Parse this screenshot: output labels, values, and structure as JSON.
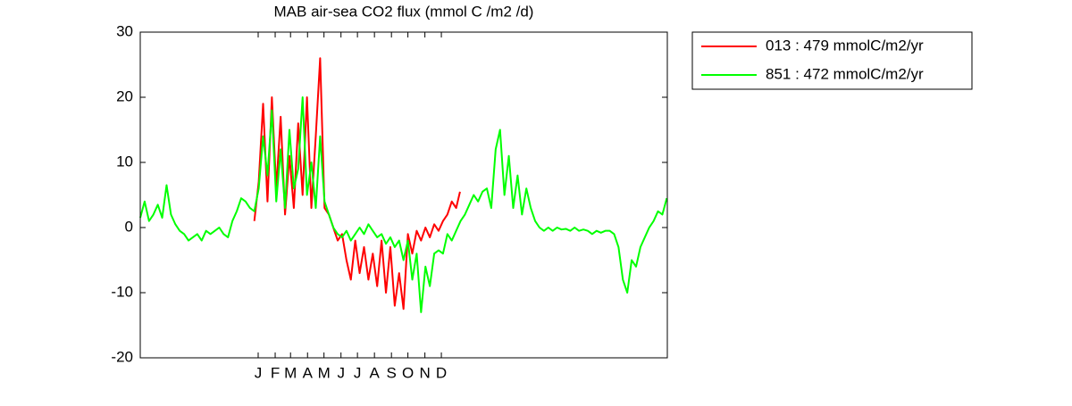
{
  "chart_data": {
    "type": "line",
    "title": "MAB  air-sea CO2 flux (mmol C /m2 /d)",
    "xlim": [
      -215,
      746
    ],
    "xticks": [
      {
        "value": 0,
        "label": "J"
      },
      {
        "value": 31,
        "label": "F"
      },
      {
        "value": 59,
        "label": "M"
      },
      {
        "value": 90,
        "label": "A"
      },
      {
        "value": 120,
        "label": "M"
      },
      {
        "value": 151,
        "label": "J"
      },
      {
        "value": 181,
        "label": "J"
      },
      {
        "value": 212,
        "label": "A"
      },
      {
        "value": 243,
        "label": "S"
      },
      {
        "value": 273,
        "label": "O"
      },
      {
        "value": 304,
        "label": "N"
      },
      {
        "value": 334,
        "label": "D"
      }
    ],
    "ylim": [
      -20,
      30
    ],
    "yticks": [
      -20,
      -10,
      0,
      10,
      20,
      30
    ],
    "grid": false,
    "legend": "outside-top-right",
    "series": [
      {
        "name": "013 : 479 mmolC/m2/yr",
        "color": "#ff0000",
        "x": [
          -7,
          1,
          9,
          17,
          25,
          33,
          41,
          49,
          57,
          65,
          73,
          81,
          89,
          97,
          105,
          113,
          121,
          129,
          137,
          145,
          153,
          161,
          169,
          177,
          185,
          193,
          201,
          209,
          217,
          225,
          233,
          241,
          249,
          257,
          265,
          273,
          281,
          289,
          297,
          305,
          313,
          321,
          329,
          337,
          345,
          353,
          361,
          368
        ],
        "values": [
          1,
          7,
          19,
          4,
          20,
          6,
          17,
          2,
          11,
          3,
          16,
          5,
          20,
          3,
          14,
          26,
          3,
          2,
          0,
          -2,
          -1,
          -5,
          -8,
          -2,
          -7,
          -3,
          -8,
          -4,
          -9,
          -2,
          -10,
          -3,
          -12,
          -7,
          -12.5,
          -1,
          -4,
          -0.5,
          -2,
          0,
          -1.5,
          0.5,
          -0.5,
          1,
          2,
          4,
          3,
          5.5
        ]
      },
      {
        "name": "851 : 472 mmolC/m2/yr",
        "color": "#00ff00",
        "x": [
          -215,
          -207,
          -199,
          -191,
          -183,
          -175,
          -167,
          -159,
          -151,
          -143,
          -135,
          -127,
          -119,
          -111,
          -103,
          -95,
          -87,
          -79,
          -71,
          -63,
          -55,
          -47,
          -39,
          -31,
          -23,
          -15,
          -7,
          1,
          9,
          17,
          25,
          33,
          41,
          49,
          57,
          65,
          73,
          81,
          89,
          97,
          105,
          113,
          121,
          129,
          137,
          145,
          153,
          161,
          169,
          177,
          185,
          193,
          201,
          209,
          217,
          225,
          233,
          241,
          249,
          257,
          265,
          273,
          281,
          289,
          297,
          305,
          313,
          321,
          329,
          337,
          345,
          353,
          361,
          369,
          377,
          385,
          393,
          401,
          409,
          417,
          425,
          433,
          441,
          449,
          457,
          465,
          473,
          481,
          489,
          497,
          505,
          513,
          521,
          529,
          537,
          545,
          553,
          561,
          569,
          577,
          585,
          593,
          601,
          609,
          617,
          625,
          633,
          641,
          649,
          657,
          665,
          673,
          681,
          689,
          697,
          705,
          713,
          721,
          729,
          737,
          745
        ],
        "values": [
          1.5,
          4,
          1,
          2,
          3.5,
          1.5,
          6.5,
          2,
          0.5,
          -0.5,
          -1,
          -2,
          -1.5,
          -1,
          -2,
          -0.5,
          -1,
          -0.5,
          0,
          -1,
          -1.5,
          1,
          2.5,
          4.5,
          4,
          3,
          2.5,
          6,
          14,
          8,
          18,
          4,
          12,
          3,
          15,
          6,
          9,
          20,
          5,
          10,
          3,
          14,
          4,
          2,
          0,
          -1,
          -1.5,
          -0.5,
          -2,
          -1,
          0,
          -1,
          0.5,
          -0.5,
          -1.5,
          -1,
          -2.5,
          -1.5,
          -3,
          -2,
          -5,
          -2,
          -8,
          -4,
          -13,
          -6,
          -9,
          -4,
          -3.5,
          -4,
          -1,
          -2,
          -0.5,
          1,
          2,
          3.5,
          5,
          4,
          5.5,
          6,
          3,
          12,
          15,
          5,
          11,
          3,
          8,
          2,
          6,
          3,
          1,
          0,
          -0.5,
          0,
          -0.5,
          0,
          -0.3,
          -0.2,
          -0.5,
          0,
          -0.5,
          -0.3,
          -0.5,
          -1,
          -0.5,
          -0.8,
          -0.5,
          -0.5,
          -1,
          -3,
          -8,
          -10,
          -5,
          -6,
          -3,
          -1.5,
          0,
          1,
          2.5,
          2,
          4.5
        ]
      }
    ]
  }
}
